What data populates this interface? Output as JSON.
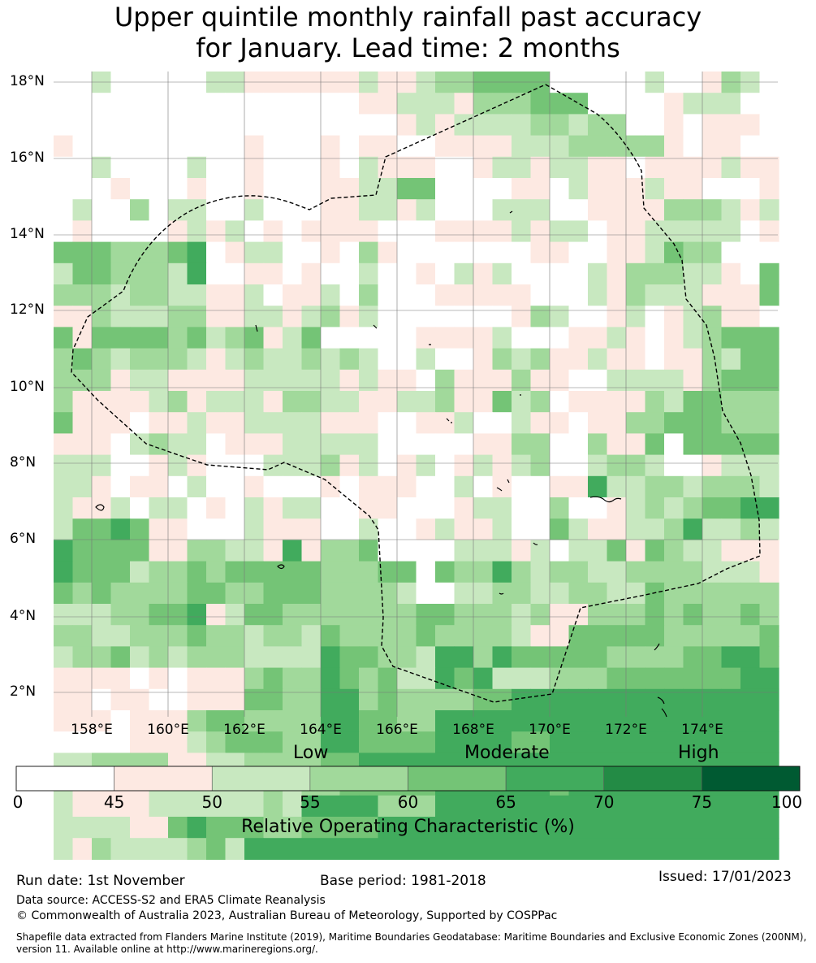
{
  "title": {
    "line1": "Upper quintile monthly rainfall past accuracy",
    "line2": "for January. Lead time: 2 months"
  },
  "map": {
    "lon_labels": [
      "158°E",
      "160°E",
      "162°E",
      "164°E",
      "166°E",
      "168°E",
      "170°E",
      "172°E",
      "174°E"
    ],
    "lat_labels": [
      "18°N",
      "16°N",
      "14°N",
      "12°N",
      "10°N",
      "8°N",
      "6°N",
      "4°N",
      "2°N"
    ],
    "eez_outline": "dashed",
    "grid": [
      "00200000221111112112334444000002001320",
      "00000000000000001122213334440000122200",
      "00000000000000000012122223323300101110",
      "10000000001000101100111122233333101100",
      "00200002001000102111001221221101111211",
      "00010001001000112244000011021112110001",
      "02003022002000112212000222001111333212",
      "01000012120101111000111121220112222201",
      "44433345012200103100000001100112433000",
      "24433325001101002001021200002133322104",
      "33323322112011203000111110002132221114",
      "11322233112212312000000013200120123110",
      "41444434234124000001111200011210123444",
      "34323332123223232002001323112110113244",
      "33312211112222212110311131100222213444",
      "31111231222133221122311423011113244333",
      "41110112112222111001120021101133444333",
      "11102322011122222000001133003114044444",
      "22200121000222312012012123002332001222",
      "22101102001000101110020100115223323332",
      "21120220102122001100012200300123234455",
      "24454110002111002001211200421122352232",
      "54444113322151334000022212022414322111",
      "54442334344444333440433532332233332221",
      "43433334433444333320022332233224333333",
      "22233445124433333334433323113334343343",
      "33223334332332433334333321144444333334",
      "23342323332222544332553544444333344554",
      "11110101113433543422545222333444444455",
      "11011001114433553433334455555555555555",
      "11101113443333554433555555555555555555",
      "00001112344433554444555544555555555555",
      "22333311223333445555555555555555555555",
      "21111222222323344444555555455555555555",
      "21111222222325555333555555555555555555",
      "22221145444334444555555555555555555555",
      "21322223425555555555555555555555555555"
    ]
  },
  "colorbar": {
    "bins": [
      {
        "color": "#ffffff"
      },
      {
        "color": "#fde9e2"
      },
      {
        "color": "#c8e8c0"
      },
      {
        "color": "#a1d99b"
      },
      {
        "color": "#74c476"
      },
      {
        "color": "#41ab5d"
      },
      {
        "color": "#238b45"
      },
      {
        "color": "#005a32"
      }
    ],
    "ticks": [
      "0",
      "45",
      "50",
      "55",
      "60",
      "65",
      "70",
      "75",
      "100"
    ],
    "category_low": "Low",
    "category_moderate": "Moderate",
    "category_high": "High",
    "xlabel": "Relative Operating Characteristic (%)"
  },
  "footer": {
    "run_date": "Run date: 1st November",
    "base_period": "Base period: 1981-2018",
    "issued": "Issued: 17/01/2023",
    "data_source": "Data source: ACCESS-S2 and ERA5 Climate Reanalysis",
    "copyright": "© Commonwealth of Australia 2023, Australian Bureau of Meteorology, Supported by COSPPac",
    "shapefile": "Shapefile data extracted from Flanders Marine Institute (2019), Maritime Boundaries Geodatabase: Maritime Boundaries and Exclusive Economic Zones (200NM), version 11. Available online at http://www.marineregions.org/."
  }
}
